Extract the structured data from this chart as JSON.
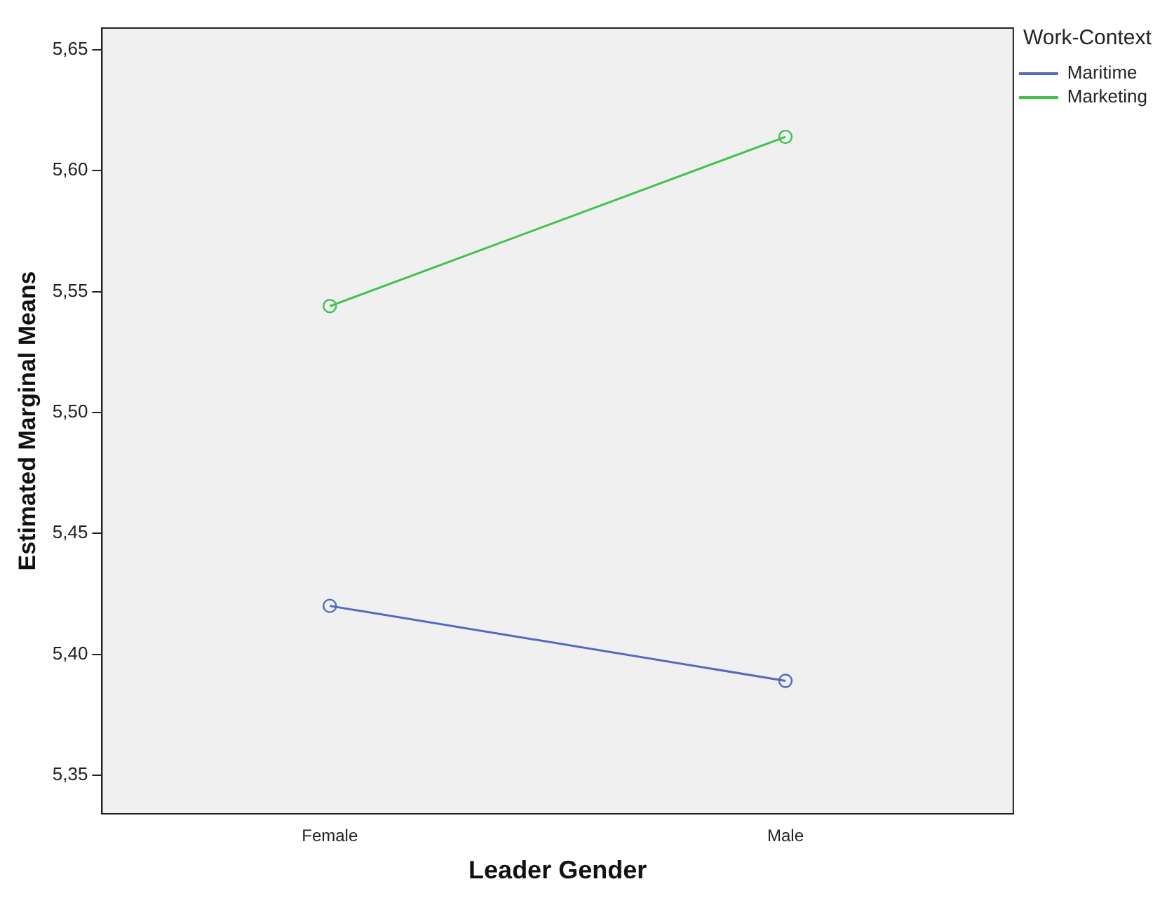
{
  "chart_data": {
    "type": "line",
    "xlabel": "Leader Gender",
    "ylabel": "Estimated Marginal Means",
    "legend_title": "Work-Context",
    "categories": [
      "Female",
      "Male"
    ],
    "series": [
      {
        "name": "Maritime",
        "color": "#5468c0",
        "values": [
          5.42,
          5.389
        ]
      },
      {
        "name": "Marketing",
        "color": "#3ec24c",
        "values": [
          5.544,
          5.614
        ]
      }
    ],
    "ylim": [
      5.334,
      5.659
    ],
    "yticks": [
      {
        "value": 5.35,
        "label": "5,35"
      },
      {
        "value": 5.4,
        "label": "5,40"
      },
      {
        "value": 5.45,
        "label": "5,45"
      },
      {
        "value": 5.5,
        "label": "5,50"
      },
      {
        "value": 5.55,
        "label": "5,55"
      },
      {
        "value": 5.6,
        "label": "5,60"
      },
      {
        "value": 5.65,
        "label": "5,65"
      }
    ],
    "grid": false,
    "legend": "top right",
    "marker": "circle",
    "line_style": "solid"
  }
}
